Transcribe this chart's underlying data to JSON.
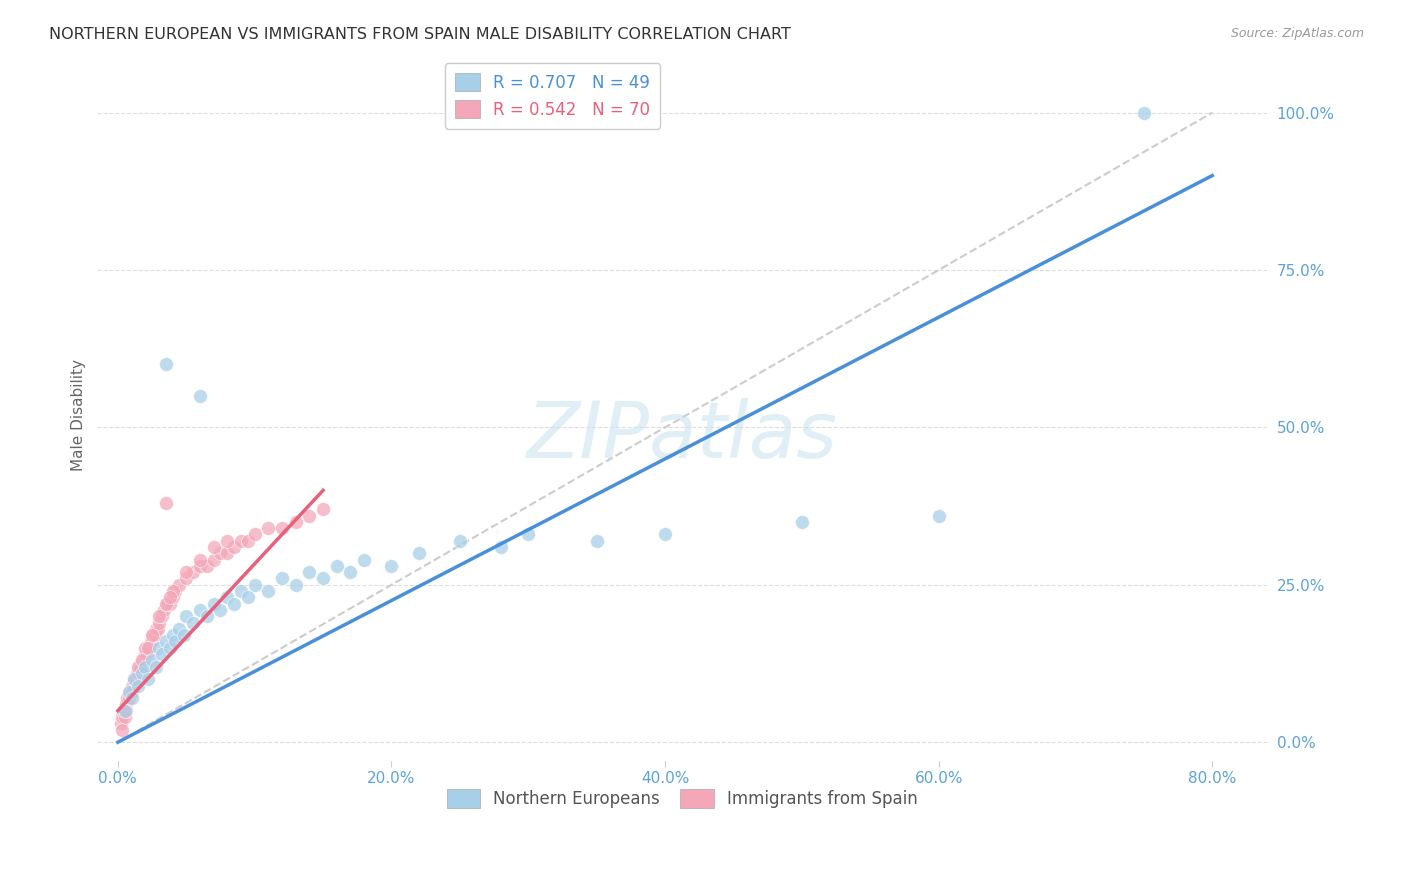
{
  "title": "NORTHERN EUROPEAN VS IMMIGRANTS FROM SPAIN MALE DISABILITY CORRELATION CHART",
  "source": "Source: ZipAtlas.com",
  "ylabel": "Male Disability",
  "legend_r1": "R = 0.707",
  "legend_n1": "N = 49",
  "legend_r2": "R = 0.542",
  "legend_n2": "N = 70",
  "blue_color": "#a8cfe8",
  "pink_color": "#f4a7b9",
  "blue_line_color": "#4a90d9",
  "pink_line_color": "#e8607a",
  "dashed_line_color": "#cccccc",
  "axis_label_color": "#5ba3d9",
  "grid_color": "#dddddd",
  "watermark": "ZIPatlas",
  "blue_line_x0": 0.0,
  "blue_line_y0": 0.0,
  "blue_line_x1": 80.0,
  "blue_line_y1": 90.0,
  "pink_line_x0": 0.0,
  "pink_line_y0": 5.0,
  "pink_line_x1": 15.0,
  "pink_line_y1": 40.0,
  "diag_x0": 0.0,
  "diag_y0": 0.0,
  "diag_x1": 80.0,
  "diag_y1": 100.0,
  "xlim_min": -1.5,
  "xlim_max": 84.0,
  "ylim_min": -3.0,
  "ylim_max": 107.0,
  "x_tick_vals": [
    0.0,
    20.0,
    40.0,
    60.0,
    80.0
  ],
  "y_tick_vals": [
    0.0,
    25.0,
    50.0,
    75.0,
    100.0
  ],
  "blue_scatter_x": [
    0.5,
    0.8,
    1.0,
    1.2,
    1.5,
    1.8,
    2.0,
    2.2,
    2.5,
    2.8,
    3.0,
    3.2,
    3.5,
    3.8,
    4.0,
    4.2,
    4.5,
    4.8,
    5.0,
    5.5,
    6.0,
    6.5,
    7.0,
    7.5,
    8.0,
    8.5,
    9.0,
    9.5,
    10.0,
    11.0,
    12.0,
    13.0,
    14.0,
    15.0,
    16.0,
    17.0,
    18.0,
    20.0,
    22.0,
    25.0,
    28.0,
    30.0,
    35.0,
    40.0,
    50.0,
    60.0,
    75.0,
    3.5,
    6.0
  ],
  "blue_scatter_y": [
    5.0,
    8.0,
    7.0,
    10.0,
    9.0,
    11.0,
    12.0,
    10.0,
    13.0,
    12.0,
    15.0,
    14.0,
    16.0,
    15.0,
    17.0,
    16.0,
    18.0,
    17.0,
    20.0,
    19.0,
    21.0,
    20.0,
    22.0,
    21.0,
    23.0,
    22.0,
    24.0,
    23.0,
    25.0,
    24.0,
    26.0,
    25.0,
    27.0,
    26.0,
    28.0,
    27.0,
    29.0,
    28.0,
    30.0,
    32.0,
    31.0,
    33.0,
    32.0,
    33.0,
    35.0,
    36.0,
    100.0,
    60.0,
    55.0
  ],
  "pink_scatter_x": [
    0.2,
    0.3,
    0.4,
    0.5,
    0.6,
    0.7,
    0.8,
    0.9,
    1.0,
    1.1,
    1.2,
    1.3,
    1.4,
    1.5,
    1.6,
    1.7,
    1.8,
    1.9,
    2.0,
    2.1,
    2.2,
    2.3,
    2.4,
    2.5,
    2.6,
    2.7,
    2.8,
    2.9,
    3.0,
    3.2,
    3.4,
    3.6,
    3.8,
    4.0,
    4.2,
    4.5,
    5.0,
    5.5,
    6.0,
    6.5,
    7.0,
    7.5,
    8.0,
    8.5,
    9.0,
    9.5,
    10.0,
    11.0,
    12.0,
    13.0,
    14.0,
    15.0,
    1.5,
    2.0,
    2.5,
    3.0,
    3.5,
    4.0,
    0.5,
    1.0,
    0.3,
    0.6,
    1.8,
    2.2,
    3.8,
    5.0,
    6.0,
    7.0,
    8.0,
    3.5
  ],
  "pink_scatter_y": [
    3.0,
    4.0,
    5.0,
    5.0,
    6.0,
    7.0,
    7.0,
    8.0,
    9.0,
    9.0,
    10.0,
    10.0,
    11.0,
    11.0,
    12.0,
    12.0,
    13.0,
    13.0,
    14.0,
    14.0,
    15.0,
    15.0,
    16.0,
    16.0,
    17.0,
    17.0,
    18.0,
    18.0,
    19.0,
    20.0,
    21.0,
    22.0,
    22.0,
    23.0,
    24.0,
    25.0,
    26.0,
    27.0,
    28.0,
    28.0,
    29.0,
    30.0,
    30.0,
    31.0,
    32.0,
    32.0,
    33.0,
    34.0,
    34.0,
    35.0,
    36.0,
    37.0,
    12.0,
    15.0,
    17.0,
    20.0,
    22.0,
    24.0,
    4.0,
    8.0,
    2.0,
    5.0,
    13.0,
    15.0,
    23.0,
    27.0,
    29.0,
    31.0,
    32.0,
    38.0
  ]
}
